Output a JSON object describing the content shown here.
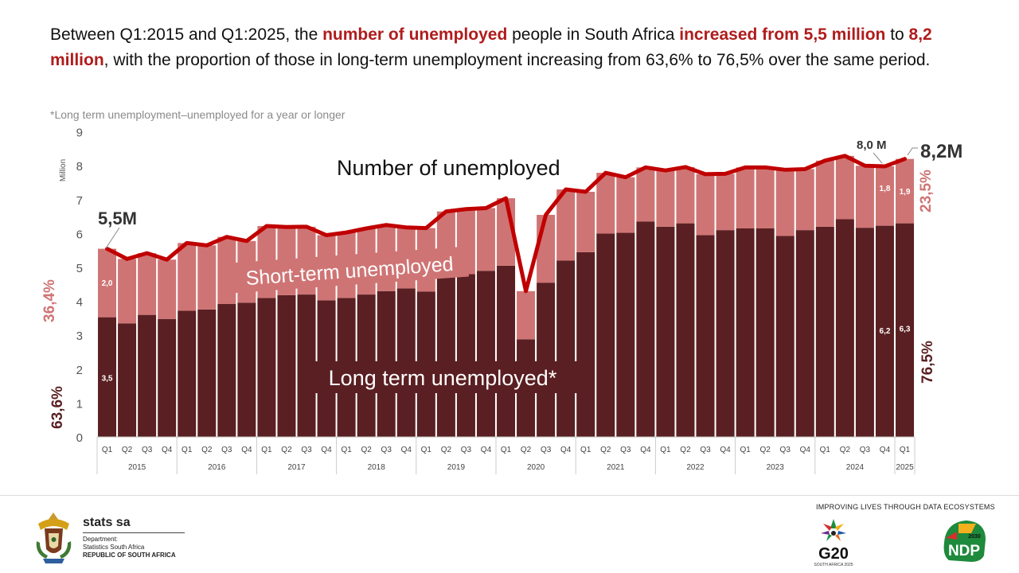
{
  "headline": {
    "p1": "Between Q1:2015 and Q1:2025, the ",
    "h1": "number of unemployed",
    "p2": " people in South Africa ",
    "h2": "increased from 5,5 million",
    "p3": " to ",
    "h3": "8,2 million",
    "p4": ", with the proportion of those in long-term unemployment increasing from 63,6% to 76,5% over the same period."
  },
  "footnote": "*Long term unemployment–unemployed for a year or longer",
  "chart_data": {
    "type": "bar",
    "stacked": true,
    "ylabel": "Million",
    "ylim": [
      0,
      9
    ],
    "yticks": [
      "0",
      "1",
      "2",
      "3",
      "4",
      "5",
      "6",
      "7",
      "8",
      "9"
    ],
    "quarters": [
      "Q1",
      "Q2",
      "Q3",
      "Q4",
      "Q1",
      "Q2",
      "Q3",
      "Q4",
      "Q1",
      "Q2",
      "Q3",
      "Q4",
      "Q1",
      "Q2",
      "Q3",
      "Q4",
      "Q1",
      "Q2",
      "Q3",
      "Q4",
      "Q1",
      "Q2",
      "Q3",
      "Q4",
      "Q1",
      "Q2",
      "Q3",
      "Q4",
      "Q1",
      "Q2",
      "Q3",
      "Q4",
      "Q1",
      "Q2",
      "Q3",
      "Q4",
      "Q1",
      "Q2",
      "Q3",
      "Q4",
      "Q1"
    ],
    "years": [
      "2015",
      "2016",
      "2017",
      "2018",
      "2019",
      "2020",
      "2021",
      "2022",
      "2023",
      "2024",
      "2025"
    ],
    "series": [
      {
        "name": "Long term unemployed*",
        "color": "#5a1f22",
        "values": [
          3.53,
          3.35,
          3.6,
          3.48,
          3.72,
          3.76,
          3.92,
          3.96,
          4.1,
          4.18,
          4.2,
          4.03,
          4.1,
          4.2,
          4.3,
          4.38,
          4.29,
          4.78,
          4.8,
          4.9,
          5.05,
          2.88,
          4.55,
          5.2,
          5.45,
          6.0,
          6.02,
          6.35,
          6.2,
          6.3,
          5.95,
          6.1,
          6.15,
          6.15,
          5.93,
          6.1,
          6.2,
          6.42,
          6.17,
          6.23,
          6.3
        ]
      },
      {
        "name": "Short-term unemployed",
        "color": "#cf7474",
        "values": [
          2.02,
          1.9,
          1.82,
          1.75,
          2.0,
          1.89,
          1.98,
          1.82,
          2.12,
          2.01,
          2.0,
          1.92,
          1.93,
          1.95,
          1.95,
          1.8,
          1.87,
          1.87,
          1.92,
          1.85,
          1.99,
          1.42,
          2.0,
          2.1,
          1.78,
          1.79,
          1.64,
          1.6,
          1.66,
          1.66,
          1.8,
          1.66,
          1.8,
          1.8,
          1.95,
          1.8,
          1.95,
          1.87,
          1.83,
          1.75,
          1.9
        ]
      }
    ],
    "total": {
      "name": "Number of unemployed",
      "color": "#c00000",
      "values": [
        5.55,
        5.25,
        5.42,
        5.23,
        5.72,
        5.65,
        5.9,
        5.78,
        6.22,
        6.19,
        6.2,
        5.95,
        6.03,
        6.15,
        6.25,
        6.18,
        6.16,
        6.65,
        6.72,
        6.75,
        7.04,
        4.3,
        6.55,
        7.3,
        7.23,
        7.79,
        7.66,
        7.95,
        7.86,
        7.96,
        7.75,
        7.76,
        7.95,
        7.95,
        7.88,
        7.9,
        8.15,
        8.29,
        8.0,
        7.98,
        8.2
      ]
    },
    "data_labels": {
      "first_short": "2,0",
      "first_long": "3,5",
      "q4_2024_short": "1,8",
      "q4_2024_long": "6,2",
      "last_short": "1,9",
      "last_long": "6,3"
    },
    "annotations": {
      "start_total": "5,5M",
      "q4_2024_total": "8,0 M",
      "end_total": "8,2M",
      "series_label_total": "Number of unemployed",
      "series_label_short": "Short-term unemployed",
      "series_label_long": "Long term unemployed*",
      "start_short_pct": "36,4%",
      "start_long_pct": "63,6%",
      "end_short_pct": "23,5%",
      "end_long_pct": "76,5%"
    }
  },
  "footer": {
    "tagline": "IMPROVING LIVES THROUGH DATA ECOSYSTEMS",
    "org_name": "stats sa",
    "dept_line1": "Department:",
    "dept_line2": "Statistics South Africa",
    "dept_line3": "REPUBLIC OF SOUTH AFRICA",
    "g20": "G20",
    "g20_sub": "SOUTH AFRICA 2025",
    "ndp": "NDP",
    "ndp_year": "2030"
  }
}
